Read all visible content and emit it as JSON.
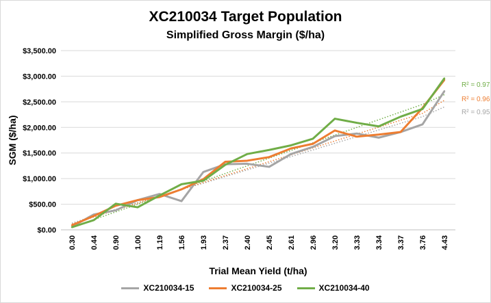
{
  "chart_data": {
    "type": "line",
    "title": "XC210034 Target Population",
    "subtitle": "Simplified Gross Margin ($/ha)",
    "xlabel": "Trial Mean Yield (t/ha)",
    "ylabel": "SGM ($/ha)",
    "categories": [
      "0.30",
      "0.44",
      "0.90",
      "1.00",
      "1.19",
      "1.56",
      "1.93",
      "2.37",
      "2.40",
      "2.45",
      "2.61",
      "2.96",
      "3.20",
      "3.33",
      "3.34",
      "3.37",
      "3.76",
      "4.43"
    ],
    "y_ticks": [
      "$0.00",
      "$500.00",
      "$1,000.00",
      "$1,500.00",
      "$2,000.00",
      "$2,500.00",
      "$3,000.00",
      "$3,500.00"
    ],
    "ylim": [
      0,
      3500
    ],
    "grid": true,
    "legend_position": "bottom",
    "series": [
      {
        "name": "XC210034-15",
        "color": "#a5a5a5",
        "values": [
          60,
          300,
          380,
          580,
          700,
          560,
          1130,
          1280,
          1290,
          1230,
          1480,
          1620,
          1830,
          1880,
          1800,
          1910,
          2060,
          2710
        ],
        "trend": [
          130,
          270,
          400,
          530,
          660,
          790,
          910,
          1040,
          1170,
          1300,
          1430,
          1560,
          1690,
          1820,
          1950,
          2080,
          2210,
          2400
        ],
        "r2_label": "R² = 0.95"
      },
      {
        "name": "XC210034-25",
        "color": "#ed7d31",
        "values": [
          90,
          270,
          470,
          580,
          640,
          790,
          990,
          1330,
          1350,
          1420,
          1590,
          1680,
          1940,
          1820,
          1860,
          1910,
          2380,
          2930
        ],
        "trend": [
          110,
          250,
          385,
          520,
          655,
          790,
          925,
          1060,
          1195,
          1330,
          1465,
          1600,
          1735,
          1870,
          2005,
          2140,
          2275,
          2530
        ],
        "r2_label": "R² = 0.96"
      },
      {
        "name": "XC210034-40",
        "color": "#70ad47",
        "values": [
          50,
          190,
          510,
          440,
          670,
          890,
          960,
          1270,
          1480,
          1560,
          1650,
          1780,
          2170,
          2090,
          2020,
          2210,
          2360,
          2960
        ],
        "trend": [
          50,
          200,
          350,
          500,
          650,
          800,
          950,
          1100,
          1250,
          1400,
          1550,
          1700,
          1850,
          2000,
          2150,
          2300,
          2450,
          2640
        ],
        "r2_label": "R² = 0.97"
      }
    ]
  }
}
